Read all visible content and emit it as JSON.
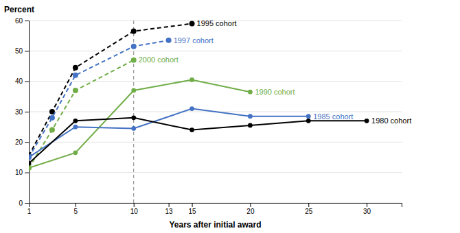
{
  "chart_data": {
    "type": "line",
    "xlabel": "Years after initial award",
    "ylabel": "Percent",
    "xlim": [
      1,
      33
    ],
    "xticks": [
      1,
      5,
      10,
      13,
      15,
      20,
      25,
      30
    ],
    "ylim": [
      0,
      60
    ],
    "yticks": [
      0,
      10,
      20,
      30,
      40,
      50,
      60
    ],
    "grid": "y",
    "vline_x": 10,
    "series": [
      {
        "name": "1995 cohort",
        "color": "#000000",
        "line_style": "dashed",
        "marker": "circle",
        "x": [
          1,
          3,
          5,
          10,
          15
        ],
        "values": [
          15.5,
          30.0,
          44.5,
          56.5,
          59.0
        ]
      },
      {
        "name": "1997 cohort",
        "color": "#4472c4",
        "line_style": "dashed",
        "marker": "circle",
        "x": [
          1,
          3,
          5,
          10,
          13
        ],
        "values": [
          15.0,
          28.0,
          42.0,
          51.5,
          53.5
        ]
      },
      {
        "name": "2000 cohort",
        "color": "#70ad47",
        "line_style": "dashed",
        "marker": "circle",
        "x": [
          1,
          3,
          5,
          10
        ],
        "values": [
          11.5,
          24.0,
          37.0,
          47.0
        ]
      },
      {
        "name": "1990 cohort",
        "color": "#70ad47",
        "line_style": "solid",
        "marker": "circle",
        "x": [
          1,
          5,
          10,
          15,
          20
        ],
        "values": [
          11.5,
          16.5,
          37.0,
          40.5,
          36.5
        ]
      },
      {
        "name": "1985 cohort",
        "color": "#4472c4",
        "line_style": "solid",
        "marker": "circle",
        "x": [
          1,
          5,
          10,
          15,
          20,
          25
        ],
        "values": [
          15.0,
          25.0,
          24.5,
          31.0,
          28.5,
          28.5
        ]
      },
      {
        "name": "1980 cohort",
        "color": "#000000",
        "line_style": "solid",
        "marker": "circle",
        "x": [
          1,
          5,
          10,
          15,
          20,
          25,
          30
        ],
        "values": [
          13.0,
          27.0,
          28.0,
          24.0,
          25.5,
          27.0,
          27.0
        ]
      }
    ]
  }
}
